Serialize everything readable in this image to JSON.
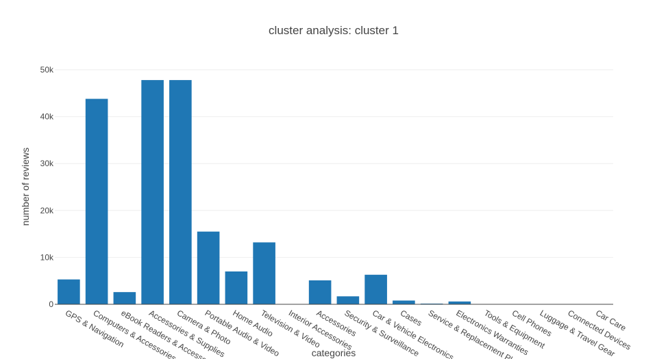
{
  "chart_data": {
    "type": "bar",
    "title": "cluster analysis: cluster 1",
    "xlabel": "categories",
    "ylabel": "number of reviews",
    "ylim": [
      0,
      50000
    ],
    "yticks": [
      0,
      10000,
      20000,
      30000,
      40000,
      50000
    ],
    "ytick_labels": [
      "0",
      "10k",
      "20k",
      "30k",
      "40k",
      "50k"
    ],
    "grid": true,
    "bar_color": "#1f77b4",
    "categories": [
      "GPS & Navigation",
      "Computers & Accessories",
      "eBook Readers & Accessories",
      "Accessories & Supplies",
      "Camera & Photo",
      "Portable Audio & Video",
      "Home Audio",
      "Television & Video",
      "Interior Accessories",
      "Accessories",
      "Security & Surveillance",
      "Car & Vehicle Electronics",
      "Cases",
      "Service & Replacement Plans",
      "Electronics Warranties",
      "Tools & Equipment",
      "Cell Phones",
      "Luggage & Travel Gear",
      "Connected Devices",
      "Car Care"
    ],
    "values": [
      5300,
      43800,
      2600,
      47800,
      47800,
      15500,
      7000,
      13200,
      0,
      5100,
      1700,
      6300,
      800,
      150,
      600,
      0,
      0,
      0,
      0,
      50
    ]
  }
}
